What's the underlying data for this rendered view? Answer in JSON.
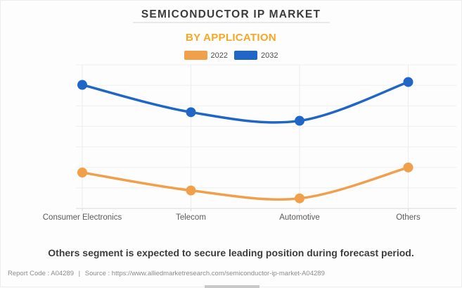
{
  "header": {
    "title": "SEMICONDUCTOR IP MARKET",
    "subtitle": "BY APPLICATION"
  },
  "legend": {
    "items": [
      {
        "label": "2022",
        "color": "#f0a04b"
      },
      {
        "label": "2032",
        "color": "#1f66c6"
      }
    ]
  },
  "chart_data": {
    "type": "line",
    "line_style": "smoothed",
    "categories": [
      "Consumer Electronics",
      "Telecom",
      "Automotive",
      "Others"
    ],
    "series": [
      {
        "name": "2022",
        "color": "#f0a04b",
        "values": [
          25,
          12.5,
          7,
          28.5
        ]
      },
      {
        "name": "2032",
        "color": "#1f66c6",
        "values": [
          86,
          67,
          61,
          88
        ]
      }
    ],
    "title": "SEMICONDUCTOR IP MARKET",
    "subtitle": "BY APPLICATION",
    "xlabel": "",
    "ylabel": "",
    "ylim": [
      0,
      100
    ],
    "y_axis_labels_visible": false,
    "grid": true,
    "legend_position": "top",
    "note": "Y-axis has no visible tick labels in source; values are estimated percent of plot height"
  },
  "footer": {
    "headline": "Others segment is expected to secure leading position during forecast period.",
    "report_code": "Report Code : A04289",
    "separator": "|",
    "source": "Source : https://www.alliedmarketresearch.com/semiconductor-ip-market-A04289"
  },
  "colors": {
    "accent_orange": "#f7a823",
    "series_2022": "#f0a04b",
    "series_2032": "#1f66c6",
    "grid": "#efefef",
    "axis": "#d9d9d9",
    "label": "#5a5a5a"
  }
}
